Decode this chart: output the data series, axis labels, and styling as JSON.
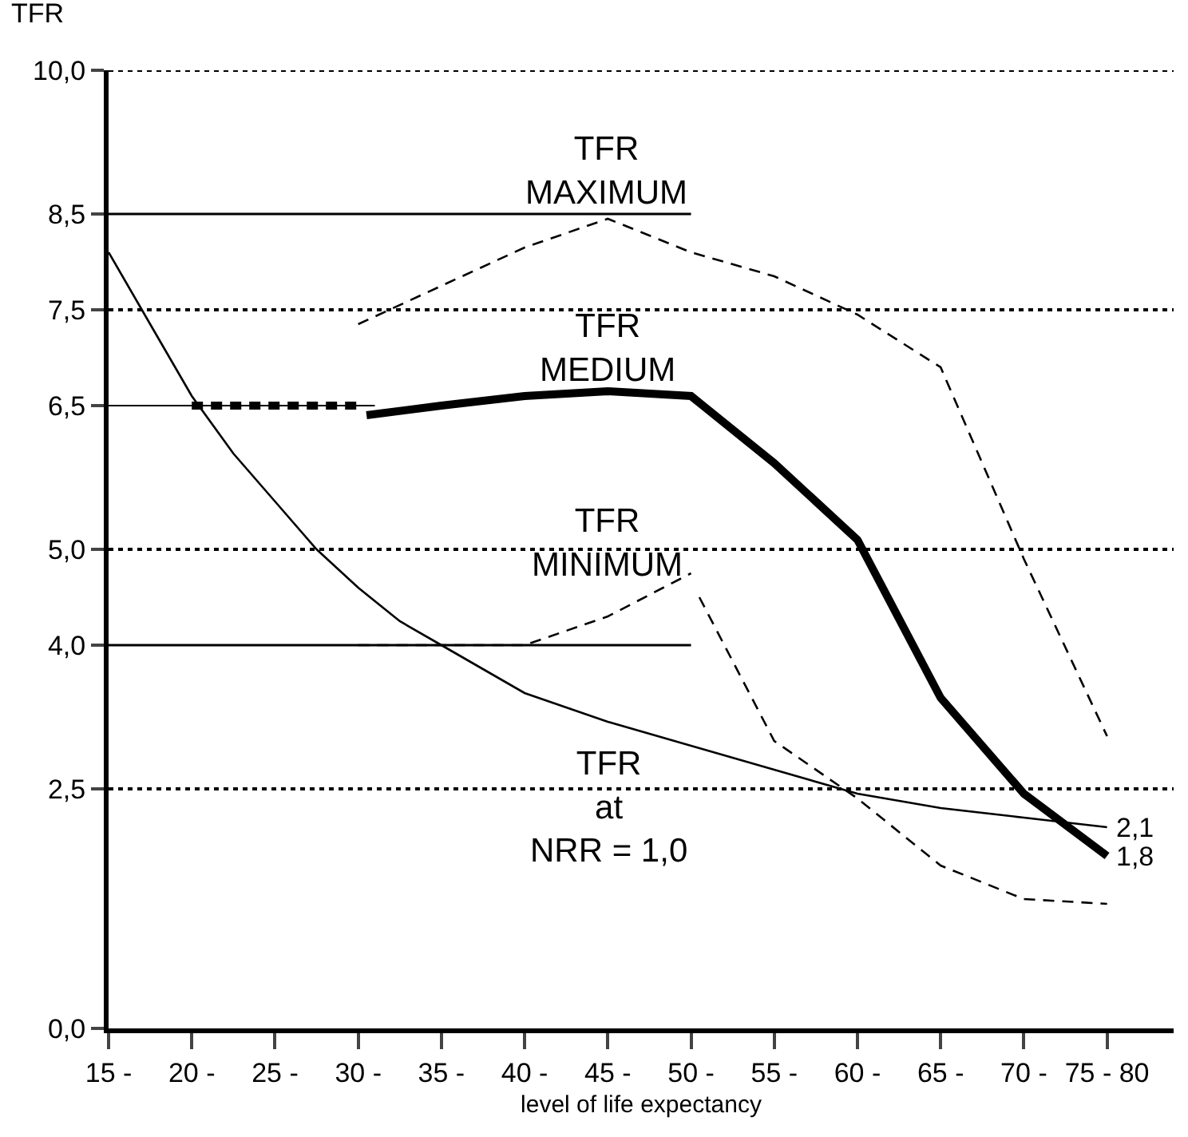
{
  "chart_data": {
    "type": "line",
    "xlabel": "level of life expectancy",
    "ylabel": "TFR",
    "xlim": [
      15,
      79
    ],
    "xticks": [
      {
        "value": 15,
        "label": "15 -"
      },
      {
        "value": 20,
        "label": "20 -"
      },
      {
        "value": 25,
        "label": "25 -"
      },
      {
        "value": 30,
        "label": "30 -"
      },
      {
        "value": 35,
        "label": "35 -"
      },
      {
        "value": 40,
        "label": "40 -"
      },
      {
        "value": 45,
        "label": "45 -"
      },
      {
        "value": 50,
        "label": "50 -"
      },
      {
        "value": 55,
        "label": "55 -"
      },
      {
        "value": 60,
        "label": "60 -"
      },
      {
        "value": 65,
        "label": "65 -"
      },
      {
        "value": 70,
        "label": "70 -"
      },
      {
        "value": 75,
        "label": "75 - 80"
      }
    ],
    "ylim": [
      0,
      10
    ],
    "yticks": [
      {
        "value": 0,
        "label": "0,0"
      },
      {
        "value": 2.5,
        "label": "2,5"
      },
      {
        "value": 4,
        "label": "4,0"
      },
      {
        "value": 5,
        "label": "5,0"
      },
      {
        "value": 6.5,
        "label": "6,5"
      },
      {
        "value": 7.5,
        "label": "7,5"
      },
      {
        "value": 8.5,
        "label": "8,5"
      },
      {
        "value": 10,
        "label": "10,0"
      }
    ],
    "grid": false,
    "marker": "none",
    "ref_lines": [
      {
        "axis": "y",
        "value": 10,
        "line_style": "dotted",
        "color": "#000000"
      },
      {
        "axis": "y",
        "value": 7.5,
        "line_style": "dotted",
        "color": "#000000"
      },
      {
        "axis": "y",
        "value": 5,
        "line_style": "dotted",
        "color": "#000000"
      },
      {
        "axis": "y",
        "value": 2.5,
        "line_style": "dotted",
        "color": "#000000"
      }
    ],
    "series": [
      {
        "color": "#000000",
        "line_style": "solid",
        "x": [
          15,
          50
        ],
        "values": [
          8.5,
          8.5
        ]
      },
      {
        "color": "#000000",
        "line_style": "solid",
        "x": [
          15,
          31
        ],
        "values": [
          6.5,
          6.5
        ]
      },
      {
        "color": "#000000",
        "line_style": "solid",
        "x": [
          15,
          50
        ],
        "values": [
          4,
          4
        ]
      },
      {
        "color": "#000000",
        "line_style": "solid",
        "x": [
          15,
          17.5,
          20,
          22.5,
          25,
          27.5,
          30,
          32.5,
          35,
          37.5,
          40,
          45,
          50,
          55,
          60,
          65,
          70,
          75
        ],
        "values": [
          8.1,
          7.35,
          6.6,
          6.0,
          5.5,
          5.0,
          4.6,
          4.25,
          4.0,
          3.75,
          3.5,
          3.2,
          2.95,
          2.7,
          2.45,
          2.3,
          2.2,
          2.1
        ]
      },
      {
        "color": "#000000",
        "line_style": "dashed",
        "x": [
          20,
          30
        ],
        "values": [
          6.5,
          6.5
        ]
      },
      {
        "color": "#000000",
        "line_style": "solid",
        "x": [
          30.5,
          35,
          40,
          45,
          50,
          55,
          60,
          65,
          70,
          75
        ],
        "values": [
          6.4,
          6.5,
          6.6,
          6.65,
          6.6,
          5.9,
          5.1,
          3.45,
          2.45,
          1.8
        ]
      },
      {
        "color": "#000000",
        "line_style": "dashed",
        "x": [
          30,
          35,
          40,
          45,
          50,
          55,
          60,
          65,
          66.5,
          70,
          75
        ],
        "values": [
          7.35,
          7.75,
          8.15,
          8.45,
          8.1,
          7.85,
          7.45,
          6.9,
          6.3,
          4.9,
          3.05
        ]
      },
      {
        "color": "#000000",
        "line_style": "dashed",
        "x": [
          30,
          40,
          45,
          50,
          50.2,
          50.5,
          55,
          60,
          65,
          70,
          75
        ],
        "values": [
          4.0,
          4.0,
          4.3,
          4.75,
          null,
          4.5,
          3.0,
          2.4,
          1.7,
          1.35,
          1.3
        ]
      }
    ],
    "annotations": [
      "TFR\nMAXIMUM",
      "TFR\nMEDIUM",
      "TFR\nMINIMUM",
      "TFR\nat\nNRR = 1,0",
      {
        "text": "2,1",
        "x": 75,
        "y": 2.1
      },
      {
        "text": "1,8",
        "x": 75,
        "y": 1.8
      }
    ]
  }
}
